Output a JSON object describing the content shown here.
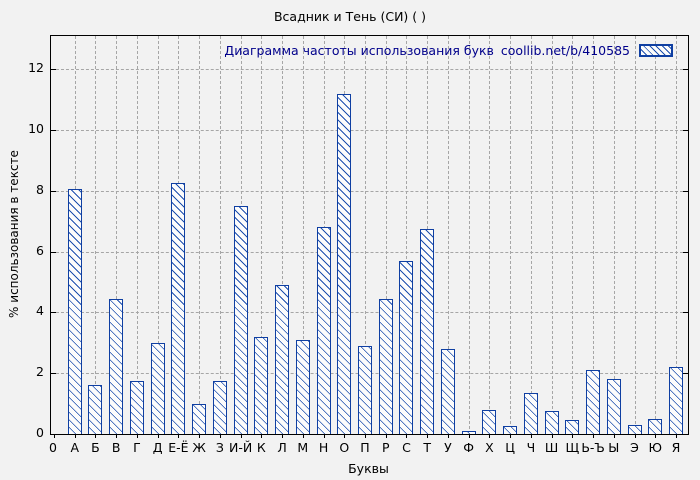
{
  "window": {
    "title": "Всадник и Тень (СИ) ( )"
  },
  "legend": {
    "label": "Диаграмма частоты использования букв",
    "source": "coollib.net/b/410585",
    "swatch": "blue-hatched-box-icon"
  },
  "colors": {
    "bar_border": "#0f3fa2",
    "bar_hatch": "#1d4fae",
    "bar_fill": "#fcfcfc",
    "grid": "#a6a6a6",
    "legend_text": "#00008b",
    "background": "#f2f2f2",
    "axis": "#000000"
  },
  "chart_data": {
    "type": "bar",
    "title": "Всадник и Тень (СИ) ( )",
    "legend_entry": "Диаграмма частоты использования букв  coollib.net/b/410585",
    "xlabel": "Буквы",
    "ylabel": "% использования в тексте",
    "origin_label": "0",
    "categories": [
      "А",
      "Б",
      "В",
      "Г",
      "Д",
      "Е-Ё",
      "Ж",
      "З",
      "И-Й",
      "К",
      "Л",
      "М",
      "Н",
      "О",
      "П",
      "Р",
      "С",
      "Т",
      "У",
      "Ф",
      "Х",
      "Ц",
      "Ч",
      "Ш",
      "Щ",
      "Ь-Ъ",
      "Ы",
      "Э",
      "Ю",
      "Я"
    ],
    "values": [
      8.05,
      1.6,
      4.45,
      1.75,
      3.0,
      8.25,
      1.0,
      1.75,
      7.5,
      3.2,
      4.9,
      3.1,
      6.8,
      11.2,
      2.9,
      4.45,
      5.7,
      6.75,
      2.8,
      0.1,
      0.8,
      0.25,
      1.35,
      0.75,
      0.45,
      2.1,
      1.8,
      0.3,
      0.5,
      2.2
    ],
    "yticks": [
      0,
      2,
      4,
      6,
      8,
      10,
      12
    ],
    "ylim": [
      0,
      13.1
    ],
    "grid": true,
    "hatch_style": "diagonal-backslash",
    "legend_position": "top-right-inside"
  }
}
